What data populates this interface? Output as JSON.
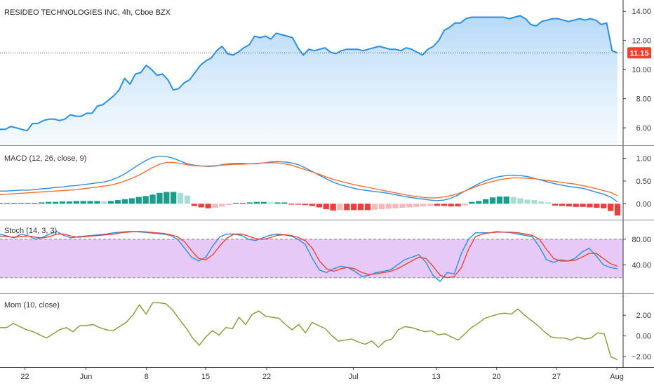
{
  "chart_title": "RESIDEO TECHNOLOGIES INC, 4h, Cboe BZX",
  "last_price_label": "11.15",
  "colors": {
    "price_line": "#2b8fe0",
    "price_fill_top": "#a9d3f7",
    "price_fill_bottom": "#eef6fd",
    "macd_line": "#2b8fe0",
    "signal_line": "#f07030",
    "hist_pos_strong": "#1c9c8a",
    "hist_pos_weak": "#a8dcd5",
    "hist_neg_strong": "#e8413d",
    "hist_neg_weak": "#f6b8ba",
    "stoch_k": "#2b8fe0",
    "stoch_d": "#f04030",
    "stoch_band": "#e6c9f7",
    "mom_line": "#8f9434",
    "price_tag": "#f04030",
    "axis_line": "#333333",
    "grid_sep": "#888888"
  },
  "chart_data": [
    {
      "pane": "price",
      "type": "area",
      "title": "RESIDEO TECHNOLOGIES INC, 4h, Cboe BZX",
      "ylim": [
        4.9,
        14.3
      ],
      "yticks": [
        "14.00",
        "12.00",
        "10.00",
        "8.00",
        "6.00"
      ],
      "ytick_values": [
        14,
        12,
        10,
        8,
        6
      ],
      "values": [
        5.9,
        5.9,
        6.1,
        6.0,
        5.9,
        5.8,
        6.3,
        6.3,
        6.5,
        6.6,
        6.6,
        6.5,
        6.6,
        6.9,
        6.8,
        6.8,
        7.0,
        7.0,
        7.5,
        7.6,
        7.9,
        8.2,
        8.6,
        9.4,
        9.0,
        9.7,
        9.8,
        10.3,
        10.0,
        9.6,
        9.7,
        9.3,
        8.6,
        8.7,
        9.1,
        9.3,
        9.8,
        10.3,
        10.6,
        10.8,
        11.3,
        11.6,
        11.1,
        11.0,
        11.2,
        11.5,
        11.7,
        12.3,
        12.2,
        12.3,
        12.1,
        12.5,
        12.4,
        12.3,
        12.2,
        11.5,
        11.0,
        11.4,
        11.3,
        11.4,
        11.5,
        11.2,
        11.1,
        11.3,
        11.4,
        11.4,
        11.4,
        11.3,
        11.4,
        11.5,
        11.6,
        11.5,
        11.4,
        11.4,
        11.3,
        11.5,
        11.4,
        11.2,
        11.0,
        11.4,
        11.6,
        12.0,
        12.7,
        12.9,
        13.2,
        13.2,
        13.5,
        13.6,
        13.6,
        13.6,
        13.6,
        13.6,
        13.6,
        13.6,
        13.5,
        13.6,
        13.7,
        13.5,
        13.1,
        13.0,
        13.3,
        13.4,
        13.5,
        13.5,
        13.4,
        13.3,
        13.4,
        13.5,
        13.4,
        13.5,
        13.4,
        13.1,
        13.2,
        11.3,
        11.15
      ]
    },
    {
      "pane": "macd",
      "type": "line",
      "title": "MACD (12, 26, close, 9)",
      "ylim": [
        -0.32,
        1.18
      ],
      "yticks": [
        "1.00",
        "0.50",
        "0.00"
      ],
      "ytick_values": [
        1.0,
        0.5,
        0.0
      ],
      "series": [
        {
          "key": "macd",
          "values": [
            0.28,
            0.28,
            0.29,
            0.3,
            0.3,
            0.31,
            0.33,
            0.34,
            0.36,
            0.37,
            0.39,
            0.4,
            0.42,
            0.44,
            0.46,
            0.48,
            0.52,
            0.58,
            0.66,
            0.76,
            0.86,
            0.95,
            1.02,
            1.05,
            1.04,
            1.0,
            0.94,
            0.88,
            0.85,
            0.83,
            0.82,
            0.83,
            0.86,
            0.88,
            0.89,
            0.89,
            0.88,
            0.88,
            0.9,
            0.92,
            0.93,
            0.92,
            0.9,
            0.86,
            0.79,
            0.71,
            0.63,
            0.55,
            0.48,
            0.42,
            0.38,
            0.34,
            0.31,
            0.29,
            0.27,
            0.25,
            0.23,
            0.2,
            0.17,
            0.14,
            0.12,
            0.1,
            0.08,
            0.07,
            0.08,
            0.12,
            0.19,
            0.28,
            0.36,
            0.44,
            0.51,
            0.56,
            0.6,
            0.62,
            0.63,
            0.62,
            0.6,
            0.56,
            0.52,
            0.48,
            0.44,
            0.41,
            0.38,
            0.36,
            0.34,
            0.3,
            0.25,
            0.21,
            0.15,
            0.04
          ]
        },
        {
          "key": "signal",
          "values": [
            0.2,
            0.21,
            0.22,
            0.23,
            0.24,
            0.25,
            0.26,
            0.27,
            0.28,
            0.29,
            0.3,
            0.31,
            0.33,
            0.35,
            0.37,
            0.39,
            0.41,
            0.45,
            0.5,
            0.56,
            0.63,
            0.71,
            0.8,
            0.87,
            0.91,
            0.91,
            0.89,
            0.86,
            0.84,
            0.83,
            0.83,
            0.84,
            0.85,
            0.86,
            0.87,
            0.87,
            0.88,
            0.89,
            0.9,
            0.9,
            0.9,
            0.88,
            0.85,
            0.8,
            0.75,
            0.7,
            0.65,
            0.59,
            0.54,
            0.5,
            0.46,
            0.42,
            0.39,
            0.36,
            0.33,
            0.3,
            0.27,
            0.24,
            0.21,
            0.18,
            0.16,
            0.14,
            0.13,
            0.13,
            0.15,
            0.18,
            0.22,
            0.28,
            0.34,
            0.4,
            0.45,
            0.49,
            0.53,
            0.55,
            0.57,
            0.57,
            0.56,
            0.55,
            0.53,
            0.51,
            0.49,
            0.47,
            0.45,
            0.43,
            0.4,
            0.37,
            0.33,
            0.29,
            0.25,
            0.18
          ]
        }
      ],
      "histogram": [
        0.02,
        0.02,
        0.02,
        0.02,
        0.02,
        0.02,
        0.03,
        0.04,
        0.04,
        0.05,
        0.05,
        0.06,
        0.06,
        0.06,
        0.06,
        0.05,
        0.06,
        0.08,
        0.1,
        0.12,
        0.15,
        0.17,
        0.2,
        0.24,
        0.26,
        0.26,
        0.24,
        0.18,
        -0.05,
        -0.08,
        -0.1,
        -0.09,
        -0.06,
        -0.03,
        0.02,
        0.02,
        0.03,
        0.04,
        0.04,
        0.03,
        0.03,
        0.03,
        -0.02,
        -0.02,
        -0.03,
        -0.05,
        -0.08,
        -0.12,
        -0.15,
        -0.14,
        -0.14,
        -0.14,
        -0.14,
        -0.14,
        -0.13,
        -0.12,
        -0.11,
        -0.1,
        -0.09,
        -0.08,
        -0.07,
        -0.06,
        -0.05,
        -0.05,
        -0.05,
        -0.06,
        -0.06,
        -0.04,
        0.04,
        0.06,
        0.1,
        0.14,
        0.16,
        0.16,
        0.15,
        0.12,
        0.09,
        0.08,
        0.05,
        0.03,
        -0.04,
        -0.05,
        -0.06,
        -0.07,
        -0.07,
        -0.08,
        -0.09,
        -0.1,
        -0.16,
        -0.26
      ],
      "hist_pos_marker": "strong-when-rising"
    },
    {
      "pane": "stoch",
      "type": "line",
      "title": "Stoch (14, 3, 3)",
      "ylim": [
        0,
        105
      ],
      "yticks": [
        "80.00",
        "40.00"
      ],
      "ytick_values": [
        80,
        40
      ],
      "band": [
        20,
        80
      ],
      "series": [
        {
          "key": "k",
          "values": [
            88,
            85,
            82,
            88,
            85,
            80,
            83,
            88,
            92,
            86,
            82,
            84,
            85,
            86,
            87,
            88,
            90,
            91,
            92,
            92,
            91,
            90,
            89,
            88,
            86,
            80,
            66,
            52,
            46,
            52,
            70,
            84,
            88,
            88,
            86,
            80,
            78,
            82,
            86,
            88,
            87,
            85,
            80,
            72,
            50,
            32,
            28,
            34,
            38,
            36,
            30,
            22,
            24,
            28,
            30,
            32,
            40,
            48,
            52,
            56,
            44,
            24,
            14,
            28,
            26,
            58,
            80,
            90,
            90,
            90,
            92,
            91,
            90,
            88,
            86,
            84,
            68,
            48,
            44,
            48,
            46,
            50,
            60,
            66,
            54,
            40,
            36,
            34
          ]
        },
        {
          "key": "d",
          "values": [
            85,
            84,
            83,
            84,
            85,
            83,
            82,
            84,
            88,
            88,
            85,
            83,
            84,
            85,
            86,
            87,
            88,
            90,
            91,
            92,
            92,
            91,
            90,
            89,
            87,
            84,
            76,
            62,
            50,
            48,
            56,
            70,
            82,
            88,
            88,
            85,
            81,
            80,
            82,
            86,
            87,
            86,
            83,
            78,
            66,
            46,
            34,
            30,
            34,
            36,
            34,
            28,
            25,
            26,
            28,
            30,
            34,
            40,
            46,
            52,
            50,
            38,
            24,
            20,
            22,
            36,
            64,
            84,
            88,
            90,
            91,
            91,
            91,
            90,
            88,
            86,
            80,
            64,
            50,
            46,
            46,
            47,
            52,
            58,
            58,
            50,
            42,
            38
          ]
        }
      ]
    },
    {
      "pane": "mom",
      "type": "line",
      "title": "Mom (10, close)",
      "ylim": [
        -2.8,
        3.7
      ],
      "yticks": [
        "2.00",
        "0.00",
        "−2.00"
      ],
      "ytick_values": [
        2,
        0,
        -2
      ],
      "values": [
        0.8,
        0.8,
        1.2,
        0.9,
        0.6,
        0.4,
        0.1,
        -0.2,
        0.2,
        0.6,
        0.8,
        0.4,
        1.0,
        1.0,
        1.1,
        0.8,
        0.6,
        0.5,
        0.9,
        1.3,
        2.0,
        3.0,
        2.1,
        3.2,
        3.2,
        3.1,
        2.5,
        1.6,
        0.8,
        -0.2,
        -0.9,
        -0.1,
        0.5,
        0.1,
        0.8,
        0.7,
        1.8,
        1.1,
        2.1,
        2.4,
        1.9,
        1.8,
        1.7,
        1.1,
        0.6,
        1.1,
        0.3,
        1.3,
        1.0,
        0.7,
        0.0,
        -0.5,
        -0.4,
        -0.3,
        -0.6,
        -0.8,
        -0.5,
        -1.1,
        -0.5,
        -0.3,
        0.6,
        0.9,
        0.8,
        0.6,
        0.4,
        0.5,
        0.1,
        0.2,
        -0.1,
        -0.4,
        0.2,
        0.8,
        1.2,
        1.7,
        1.9,
        2.1,
        2.2,
        2.1,
        2.6,
        2.0,
        1.5,
        1.0,
        0.4,
        -0.1,
        -0.2,
        -0.2,
        -0.4,
        -0.1,
        -0.3,
        -0.2,
        0.3,
        0.2,
        -2.0,
        -2.3
      ]
    }
  ],
  "x_axis": {
    "labels": [
      "22",
      "Jun",
      "8",
      "15",
      "22",
      "Jul",
      "13",
      "20",
      "27",
      "Aug"
    ],
    "label_positions_fraction": [
      0.04,
      0.138,
      0.235,
      0.33,
      0.428,
      0.567,
      0.7,
      0.797,
      0.893,
      0.99
    ]
  }
}
